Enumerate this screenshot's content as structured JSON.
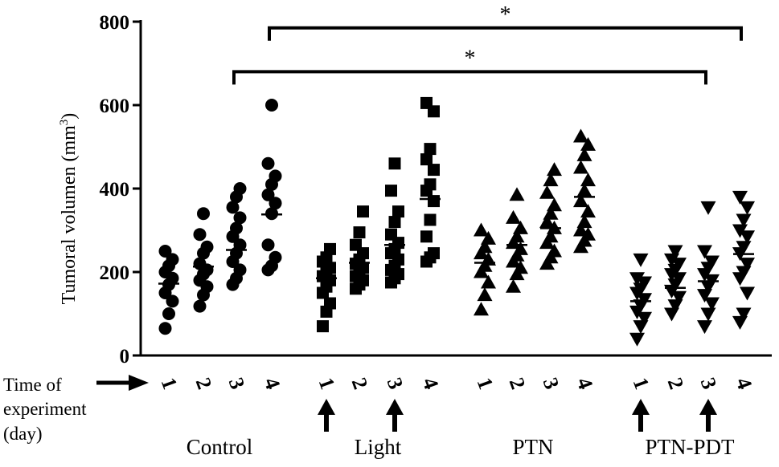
{
  "chart_data": {
    "type": "scatter",
    "ylabel": "Tumoral volumen (mm",
    "ylabel_superscript": "3",
    "ylabel_close": ")",
    "ylim": [
      0,
      800
    ],
    "y_ticks": [
      {
        "value": 0,
        "label": "0"
      },
      {
        "value": 200,
        "label": "200"
      },
      {
        "value": 400,
        "label": "400"
      },
      {
        "value": 600,
        "label": "600"
      },
      {
        "value": 800,
        "label": "800"
      }
    ],
    "x_caption": [
      "Time of",
      "experiment",
      "(day)"
    ],
    "groups": [
      {
        "name": "Control",
        "marker": "circle",
        "arrow_days": [],
        "days": [
          {
            "label": "1",
            "mean": 172,
            "values": [
              65,
              100,
              130,
              150,
              170,
              185,
              200,
              215,
              230,
              250
            ]
          },
          {
            "label": "2",
            "mean": 213,
            "values": [
              118,
              145,
              165,
              180,
              195,
              205,
              220,
              245,
              260,
              290,
              340
            ]
          },
          {
            "label": "3",
            "mean": 253,
            "values": [
              170,
              185,
              205,
              225,
              245,
              265,
              285,
              305,
              330,
              355,
              380,
              400
            ]
          },
          {
            "label": "4",
            "mean": 338,
            "values": [
              205,
              215,
              235,
              265,
              340,
              365,
              385,
              410,
              430,
              460,
              600
            ]
          }
        ]
      },
      {
        "name": "Light",
        "marker": "square",
        "arrow_days": [
          "1",
          "3"
        ],
        "days": [
          {
            "label": "1",
            "mean": 185,
            "values": [
              70,
              105,
              125,
              150,
              165,
              180,
              190,
              200,
              210,
              225,
              235,
              255
            ]
          },
          {
            "label": "2",
            "mean": 222,
            "values": [
              160,
              170,
              180,
              190,
              200,
              210,
              220,
              230,
              245,
              265,
              295,
              345
            ]
          },
          {
            "label": "3",
            "mean": 265,
            "values": [
              175,
              185,
              195,
              205,
              215,
              230,
              245,
              255,
              270,
              290,
              320,
              345,
              395,
              460
            ]
          },
          {
            "label": "4",
            "mean": 375,
            "values": [
              225,
              235,
              245,
              285,
              325,
              370,
              395,
              410,
              445,
              470,
              495,
              585,
              605
            ]
          }
        ]
      },
      {
        "name": "PTN",
        "marker": "triangle-up",
        "arrow_days": [],
        "days": [
          {
            "label": "1",
            "mean": 222,
            "values": [
              110,
              145,
              175,
              200,
              215,
              230,
              245,
              260,
              280,
              300
            ]
          },
          {
            "label": "2",
            "mean": 265,
            "values": [
              165,
              195,
              210,
              225,
              240,
              255,
              270,
              285,
              305,
              330,
              385
            ]
          },
          {
            "label": "3",
            "mean": 305,
            "values": [
              220,
              235,
              250,
              270,
              285,
              305,
              320,
              340,
              360,
              390,
              420,
              445
            ]
          },
          {
            "label": "4",
            "mean": 380,
            "values": [
              260,
              275,
              290,
              300,
              320,
              345,
              370,
              395,
              420,
              450,
              480,
              505,
              525
            ]
          }
        ]
      },
      {
        "name": "PTN-PDT",
        "marker": "triangle-down",
        "arrow_days": [
          "1",
          "3"
        ],
        "days": [
          {
            "label": "1",
            "mean": 130,
            "values": [
              40,
              70,
              90,
              105,
              120,
              135,
              150,
              160,
              175,
              185,
              230
            ]
          },
          {
            "label": "2",
            "mean": 162,
            "values": [
              100,
              120,
              140,
              155,
              170,
              185,
              195,
              205,
              220,
              230,
              250
            ]
          },
          {
            "label": "3",
            "mean": 178,
            "values": [
              70,
              100,
              125,
              145,
              165,
              180,
              195,
              210,
              225,
              250,
              355
            ]
          },
          {
            "label": "4",
            "mean": 243,
            "values": [
              80,
              100,
              150,
              185,
              200,
              220,
              245,
              260,
              285,
              300,
              325,
              355,
              380
            ]
          }
        ]
      }
    ],
    "significance": [
      {
        "label": "*",
        "from": {
          "group": "Control",
          "day": "4"
        },
        "to": {
          "group": "PTN-PDT",
          "day": "4"
        },
        "y": 785
      },
      {
        "label": "*",
        "from": {
          "group": "Control",
          "day": "3"
        },
        "to": {
          "group": "PTN-PDT",
          "day": "3"
        },
        "y": 680
      }
    ]
  },
  "colors": {
    "marker": "#000000",
    "axis": "#000000",
    "background": "#ffffff"
  }
}
